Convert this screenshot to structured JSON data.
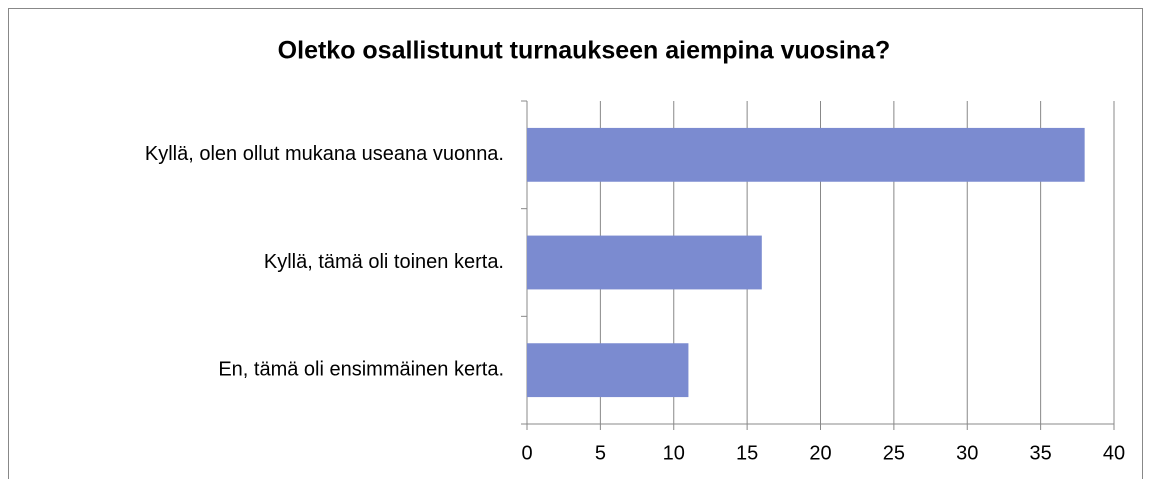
{
  "chart_data": {
    "type": "bar",
    "orientation": "horizontal",
    "title": "Oletko osallistunut turnaukseen aiempina vuosina?",
    "categories": [
      "Kyllä, olen ollut mukana useana vuonna.",
      "Kyllä, tämä oli toinen kerta.",
      "En, tämä oli ensimmäinen kerta."
    ],
    "values": [
      38,
      16,
      11
    ],
    "color": "#7b8bd0",
    "xlim": [
      0,
      40
    ],
    "xticks": [
      0,
      5,
      10,
      15,
      20,
      25,
      30,
      35,
      40
    ],
    "grid": true
  }
}
